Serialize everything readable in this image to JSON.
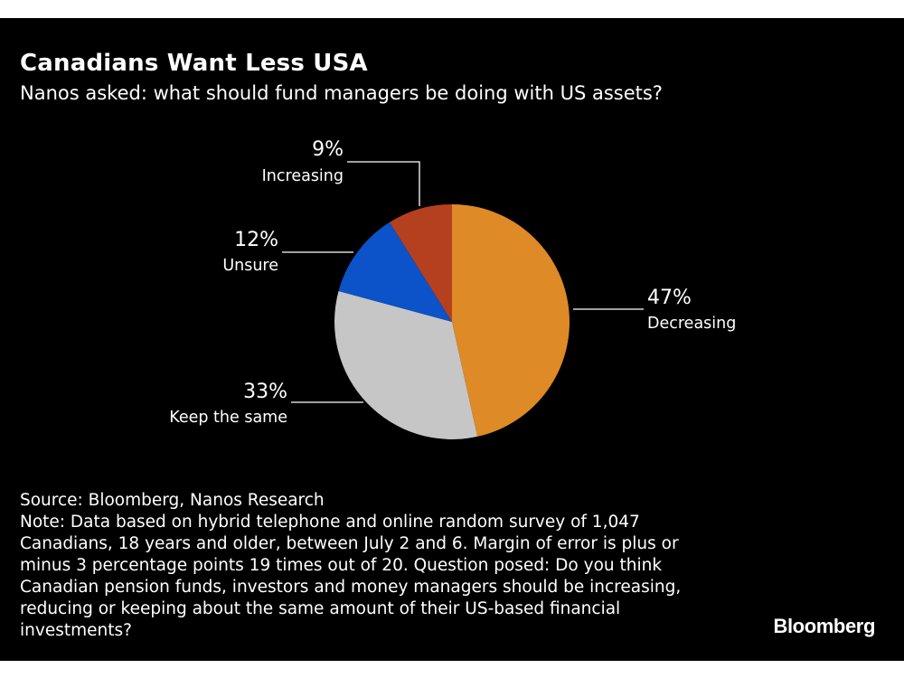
{
  "chart_data": {
    "type": "pie",
    "title": "Canadians Want Less USA",
    "subtitle": "Nanos asked: what should fund managers be doing with US assets?",
    "slices": [
      {
        "label": "Decreasing",
        "value": 47,
        "display": "47%",
        "color": "#dd8a27"
      },
      {
        "label": "Keep the same",
        "value": 33,
        "display": "33%",
        "color": "#c6c6c6"
      },
      {
        "label": "Unsure",
        "value": 12,
        "display": "12%",
        "color": "#0c52c9"
      },
      {
        "label": "Increasing",
        "value": 9,
        "display": "9%",
        "color": "#b5401f"
      }
    ],
    "start_angle_deg": 0,
    "direction": "clockwise"
  },
  "footer": {
    "source": "Source: Bloomberg, Nanos Research",
    "note": "Note: Data based on hybrid telephone and online random survey of 1,047 Canadians, 18 years and older, between July 2 and 6. Margin of error is plus or minus 3 percentage points 19 times out of 20. Question posed: Do you think Canadian pension funds, investors and money managers should be increasing, reducing or keeping about the same amount of their US-based financial investments?",
    "brand": "Bloomberg"
  },
  "colors": {
    "background": "#000000",
    "text": "#ffffff"
  }
}
